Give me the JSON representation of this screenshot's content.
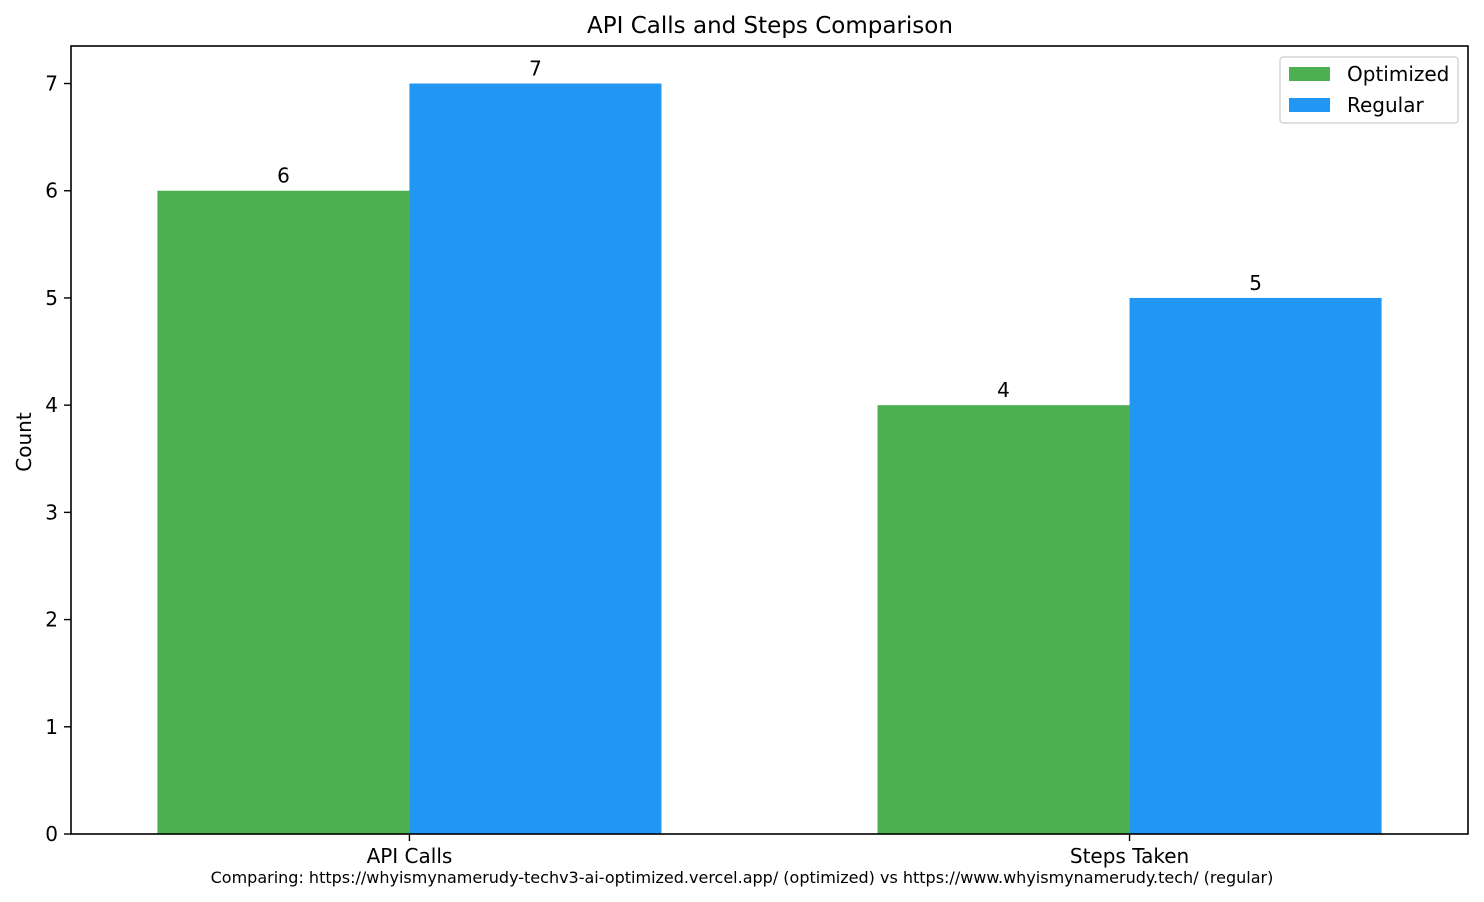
{
  "chart_data": {
    "type": "bar",
    "title": "API Calls and Steps Comparison",
    "xlabel": "",
    "ylabel": "Count",
    "categories": [
      "API Calls",
      "Steps Taken"
    ],
    "series": [
      {
        "name": "Optimized",
        "values": [
          6,
          4
        ],
        "color": "#4caf50"
      },
      {
        "name": "Regular",
        "values": [
          7,
          5
        ],
        "color": "#2196f3"
      }
    ],
    "ylim": [
      0,
      7.35
    ],
    "yticks": [
      0,
      1,
      2,
      3,
      4,
      5,
      6,
      7
    ],
    "grid": false,
    "legend_position": "top-right",
    "footnote": "Comparing: https://whyismynamerudy-techv3-ai-optimized.vercel.app/ (optimized) vs https://www.whyismynamerudy.tech/ (regular)"
  }
}
